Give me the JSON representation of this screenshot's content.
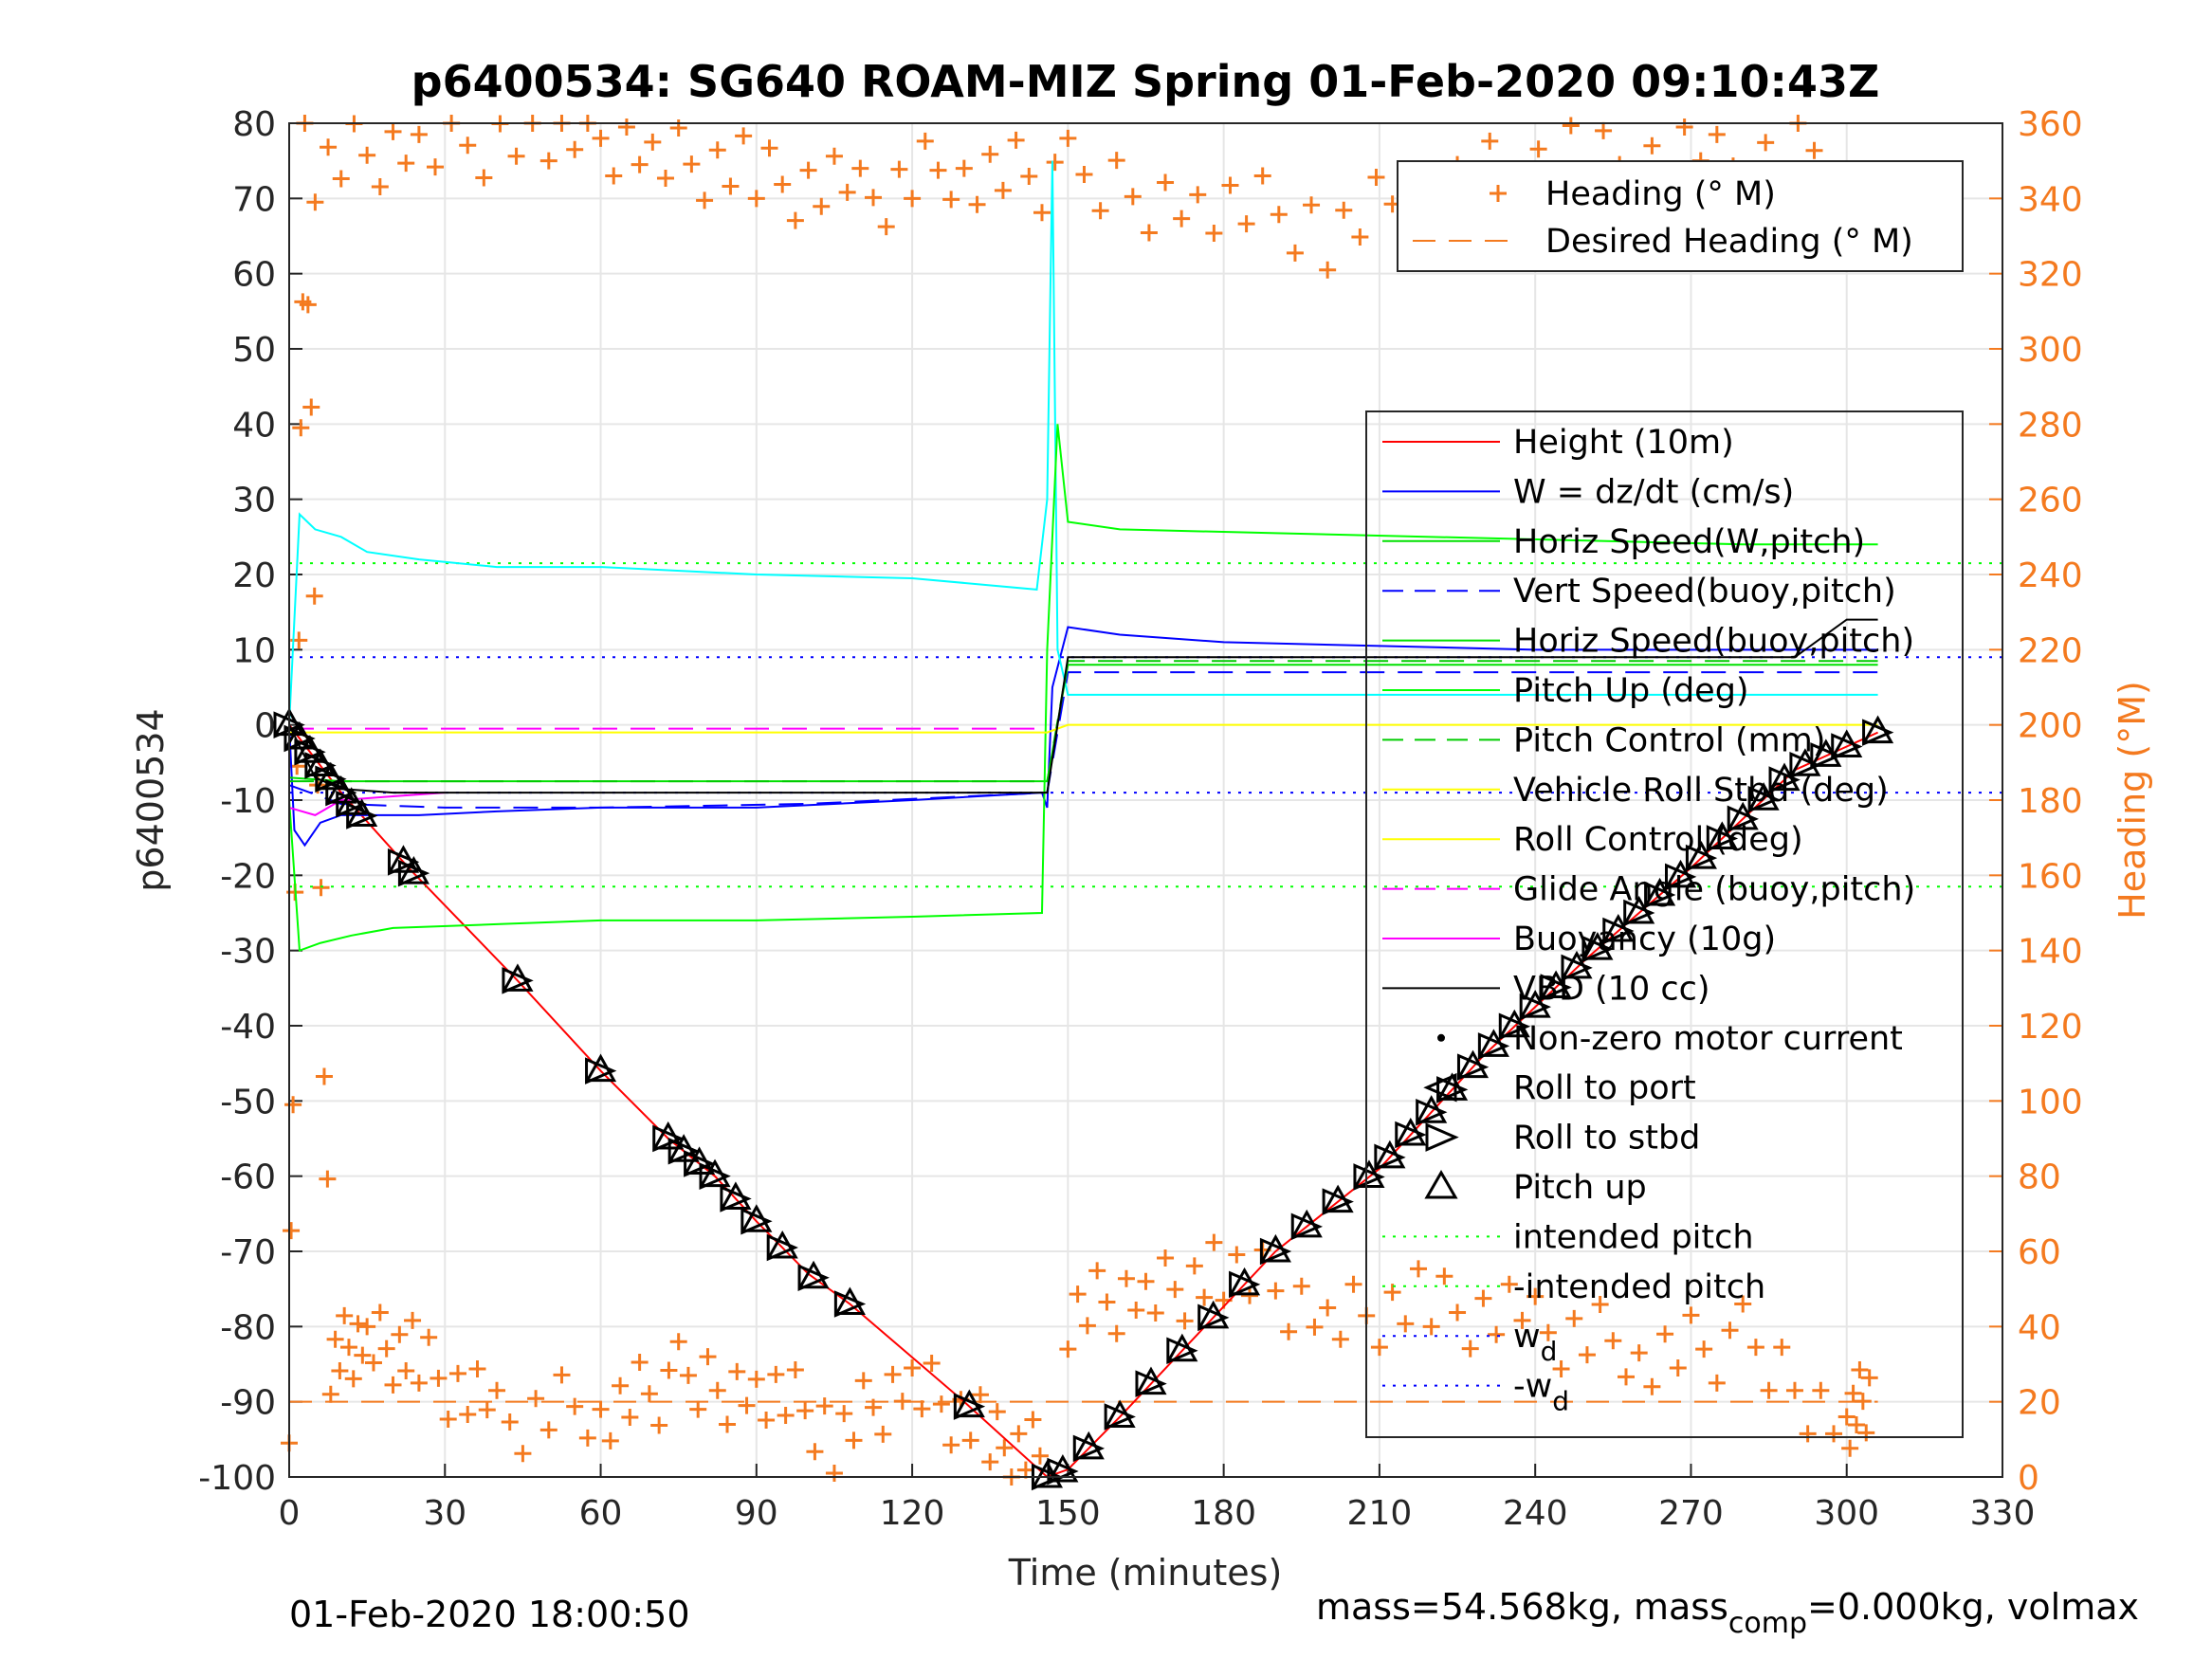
{
  "chart_data": {
    "type": "line",
    "title": "p6400534: SG640 ROAM-MIZ Spring 01-Feb-2020 09:10:43Z",
    "xlabel": "Time (minutes)",
    "ylabel_left": "p6400534",
    "ylabel_right": "Heading (°M)",
    "xlim": [
      0,
      330
    ],
    "ylim_left": [
      -100,
      80
    ],
    "ylim_right": [
      0,
      360
    ],
    "x_ticks": [
      "0",
      "30",
      "60",
      "90",
      "120",
      "150",
      "180",
      "210",
      "240",
      "270",
      "300",
      "330"
    ],
    "y_ticks_left": [
      "80",
      "70",
      "60",
      "50",
      "40",
      "30",
      "20",
      "10",
      "0",
      "-10",
      "-20",
      "-30",
      "-40",
      "-50",
      "-60",
      "-70",
      "-80",
      "-90",
      "-100"
    ],
    "y_ticks_right": [
      "360",
      "340",
      "320",
      "300",
      "280",
      "260",
      "240",
      "220",
      "200",
      "180",
      "160",
      "140",
      "120",
      "100",
      "80",
      "60",
      "40",
      "20",
      "0"
    ],
    "grid": true,
    "footer_left": "01-Feb-2020 18:00:50",
    "footer_right": {
      "a": "mass=54.568kg, mass",
      "sub": "comp",
      "b": "=0.000kg, volmax"
    },
    "heading_legend": [
      {
        "label": "Heading (° M)",
        "color": "#F47A1F",
        "style": "plus"
      },
      {
        "label": "Desired Heading (° M)",
        "color": "#F47A1F",
        "style": "dash"
      }
    ],
    "legend": [
      {
        "label": "Height (10m)",
        "color": "#FF0000",
        "style": "solid"
      },
      {
        "label": "W = dz/dt (cm/s)",
        "color": "#0000FF",
        "style": "solid"
      },
      {
        "label": "Horiz Speed(W,pitch)",
        "color": "#00E000",
        "style": "solid"
      },
      {
        "label": "Vert Speed(buoy,pitch)",
        "color": "#0000FF",
        "style": "dash"
      },
      {
        "label": "Horiz Speed(buoy,pitch)",
        "color": "#00E000",
        "style": "solid"
      },
      {
        "label": "Pitch Up (deg)",
        "color": "#00FF00",
        "style": "solid"
      },
      {
        "label": "Pitch Control (mm)",
        "color": "#00CC00",
        "style": "dash"
      },
      {
        "label": "Vehicle Roll Stbd (deg)",
        "color": "#FFFF00",
        "style": "solid"
      },
      {
        "label": "Roll Control (deg)",
        "color": "#FFFF00",
        "style": "solid"
      },
      {
        "label": "Glide Angle (buoy,pitch)",
        "color": "#FF00FF",
        "style": "dash"
      },
      {
        "label": "Buoyancy (10g)",
        "color": "#FF00FF",
        "style": "solid"
      },
      {
        "label": "VBD (10 cc)",
        "color": "#000000",
        "style": "solid"
      },
      {
        "label": "Non-zero motor current",
        "color": "#000000",
        "style": "dot"
      },
      {
        "label": "Roll to port",
        "color": "#000000",
        "style": "tri-left"
      },
      {
        "label": "Roll to stbd",
        "color": "#000000",
        "style": "tri-right"
      },
      {
        "label": "Pitch up",
        "color": "#000000",
        "style": "tri-up"
      },
      {
        "label": "intended pitch",
        "color": "#00FF00",
        "style": "dotted"
      },
      {
        "label": "-intended pitch",
        "color": "#00FF00",
        "style": "dotted"
      },
      {
        "label": "w",
        "sub": "d",
        "color": "#0000FF",
        "style": "dotted"
      },
      {
        "label": "-w",
        "sub": "d",
        "color": "#0000FF",
        "style": "dotted"
      }
    ],
    "series": [
      {
        "name": "Height (10m)",
        "color": "#FF0000",
        "x": [
          0,
          10,
          23,
          44,
          60,
          73,
          82,
          90,
          100,
          108,
          130,
          146,
          150,
          160,
          175,
          190,
          210,
          230,
          250,
          270,
          290,
          306
        ],
        "y": [
          0,
          -9,
          -19,
          -34,
          -46,
          -55,
          -60,
          -66,
          -73,
          -77,
          -90,
          -100,
          -99,
          -92,
          -81,
          -70,
          -59,
          -44,
          -31,
          -19,
          -6,
          -1
        ]
      },
      {
        "name": "W = dz/dt (cm/s)",
        "color": "#0000FF",
        "x": [
          0,
          1,
          3,
          6,
          10,
          15,
          25,
          40,
          60,
          90,
          120,
          145,
          146,
          147,
          150,
          160,
          180,
          210,
          240,
          270,
          306
        ],
        "y": [
          0,
          -14,
          -16,
          -13,
          -12,
          -12,
          -12,
          -11.5,
          -11,
          -11,
          -10,
          -9,
          -11,
          5,
          13,
          12,
          11,
          10.5,
          10,
          10,
          10
        ]
      },
      {
        "name": "Vert Speed(buoy,pitch)",
        "color": "#0000FF",
        "x": [
          0,
          10,
          30,
          60,
          100,
          146,
          150,
          200,
          250,
          306
        ],
        "y": [
          -8,
          -10.5,
          -11,
          -11,
          -10.5,
          -9,
          7,
          7,
          7,
          7
        ]
      },
      {
        "name": "Horiz Speed(W,pitch)",
        "color": "#00FFFF",
        "x": [
          0,
          2,
          5,
          10,
          15,
          25,
          40,
          60,
          90,
          120,
          144,
          145,
          146,
          147,
          148,
          150,
          200,
          250,
          306
        ],
        "y": [
          0,
          28,
          26,
          25,
          23,
          22,
          21,
          21,
          20,
          19.5,
          18,
          24,
          30,
          75,
          10,
          4,
          4,
          4,
          4
        ]
      },
      {
        "name": "Horiz Speed(buoy,pitch)",
        "color": "#00E000",
        "x": [
          0,
          10,
          60,
          100,
          146,
          150,
          200,
          250,
          306
        ],
        "y": [
          -7,
          -7.5,
          -7.5,
          -7.5,
          -7.5,
          8,
          8,
          8,
          8
        ]
      },
      {
        "name": "Pitch Up (deg)",
        "color": "#00FF00",
        "x": [
          0,
          2,
          6,
          12,
          20,
          40,
          60,
          90,
          120,
          145,
          146,
          148,
          150,
          160,
          190,
          220,
          250,
          280,
          306
        ],
        "y": [
          -10,
          -30,
          -29,
          -28,
          -27,
          -26.5,
          -26,
          -26,
          -25.5,
          -25,
          10,
          40,
          27,
          26,
          25.5,
          25,
          24.5,
          24,
          24
        ]
      },
      {
        "name": "Pitch Control (mm)",
        "color": "#00CC00",
        "x": [
          0,
          10,
          60,
          120,
          146,
          150,
          200,
          250,
          306
        ],
        "y": [
          -7.5,
          -7.5,
          -7.5,
          -7.5,
          -7.5,
          8.5,
          8.5,
          8.5,
          8.5
        ]
      },
      {
        "name": "Roll Control (deg)",
        "color": "#FFFF00",
        "x": [
          0,
          146,
          150,
          306
        ],
        "y": [
          -1,
          -1,
          0,
          0
        ]
      },
      {
        "name": "Glide Angle (buoy,pitch)",
        "color": "#FF00FF",
        "x": [
          0,
          146
        ],
        "y": [
          -0.5,
          -0.5
        ]
      },
      {
        "name": "Buoyancy (10g)",
        "color": "#FF00FF",
        "x": [
          0,
          5,
          10,
          20,
          30
        ],
        "y": [
          -11,
          -12,
          -10,
          -9.5,
          -9
        ]
      },
      {
        "name": "VBD (10 cc)",
        "color": "#000000",
        "x": [
          0,
          5,
          10,
          20,
          60,
          146,
          150,
          200,
          250,
          290,
          296,
          300,
          306
        ],
        "y": [
          0,
          -7,
          -8.5,
          -9,
          -9,
          -9,
          9,
          9,
          9,
          9,
          12,
          14,
          14
        ]
      }
    ],
    "reference_lines": [
      {
        "name": "intended pitch",
        "y": 21.5,
        "color": "#00FF00"
      },
      {
        "name": "-intended pitch",
        "y": -21.5,
        "color": "#00FF00"
      },
      {
        "name": "w_d",
        "y": 9,
        "color": "#0000FF"
      },
      {
        "name": "-w_d",
        "y": -9,
        "color": "#0000FF"
      }
    ],
    "desired_heading": 20,
    "heading_samples": [
      {
        "x": [
          0,
          3,
          8,
          15,
          25,
          40,
          60,
          75,
          90,
          105,
          120,
          135,
          146
        ],
        "y": [
          20,
          360,
          30,
          35,
          30,
          15,
          20,
          25,
          25,
          10,
          25,
          10,
          5
        ]
      },
      {
        "x": [
          150,
          165,
          180,
          200,
          220,
          240,
          260,
          280,
          300,
          305
        ],
        "y": [
          45,
          50,
          55,
          40,
          45,
          40,
          35,
          35,
          15,
          20
        ]
      },
      {
        "x": [
          5,
          25,
          50,
          70,
          90,
          110,
          130,
          150,
          175,
          200,
          225,
          250,
          275,
          300
        ],
        "y": [
          350,
          355,
          358,
          350,
          345,
          340,
          350,
          345,
          340,
          330,
          345,
          350,
          350,
          355
        ]
      }
    ],
    "pitch_markers_x": [
      0,
      2,
      4,
      6,
      8,
      10,
      12,
      14,
      22,
      24,
      44,
      60,
      73,
      76,
      79,
      82,
      86,
      90,
      95,
      101,
      108,
      131,
      146,
      149,
      154,
      160,
      166,
      172,
      178,
      184,
      190,
      196,
      202,
      208,
      212,
      216,
      220,
      224,
      228,
      232,
      236,
      240,
      244,
      248,
      252,
      256,
      260,
      264,
      268,
      272,
      276,
      280,
      284,
      288,
      292,
      296,
      300,
      306
    ]
  }
}
